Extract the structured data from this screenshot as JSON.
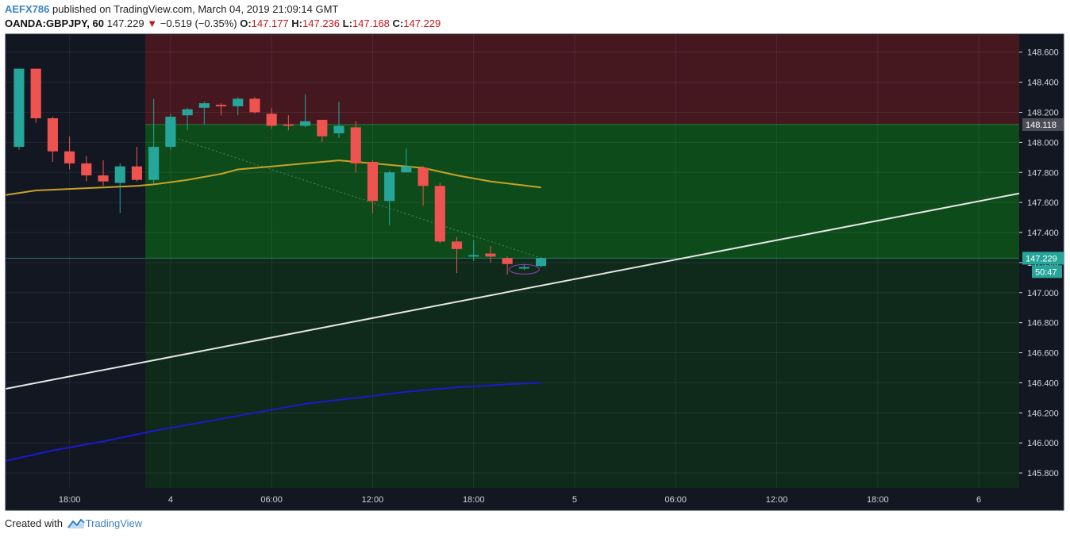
{
  "header": {
    "username": "AEFX786",
    "published_text": "published on TradingView.com, March 04, 2019 21:09:14 GMT",
    "symbol": "OANDA:GBPJPY, 60",
    "last": "147.229",
    "change": "−0.519 (−0.35%)",
    "o_label": "O:",
    "o_value": "147.177",
    "h_label": "H:",
    "h_value": "147.236",
    "l_label": "L:",
    "l_value": "147.168",
    "c_label": "C:",
    "c_value": "147.229"
  },
  "footer": {
    "created_with": "Created with",
    "brand": "TradingView"
  },
  "colors": {
    "bg": "#131722",
    "bull": "#26a69a",
    "bear": "#ef5350",
    "stop_zone": "#451820",
    "target_zone": "#0d4b1a",
    "risk_zone": "#0f2a1a",
    "ma_fast": "#c9a227",
    "ma_slow": "#1a1acc",
    "trendline": "#e6e6e6"
  },
  "chart_data": {
    "type": "candlestick",
    "symbol": "OANDA:GBPJPY",
    "interval": "60",
    "y_range": [
      145.7,
      148.72
    ],
    "y_ticks": [
      "148.600",
      "148.400",
      "148.200",
      "148.000",
      "147.800",
      "147.600",
      "147.400",
      "147.200",
      "147.000",
      "146.800",
      "146.600",
      "146.400",
      "146.200",
      "146.000",
      "145.800"
    ],
    "x_ticks": [
      {
        "label": "18:00",
        "bar": 3
      },
      {
        "label": "4",
        "bar": 9
      },
      {
        "label": "06:00",
        "bar": 15
      },
      {
        "label": "12:00",
        "bar": 21
      },
      {
        "label": "18:00",
        "bar": 27
      },
      {
        "label": "5",
        "bar": 33
      },
      {
        "label": "06:00",
        "bar": 39
      },
      {
        "label": "12:00",
        "bar": 45
      },
      {
        "label": "18:00",
        "bar": 51
      },
      {
        "label": "6",
        "bar": 57
      }
    ],
    "bars_visible_span": [
      -0.8,
      59.4
    ],
    "candles": [
      {
        "o": 147.97,
        "h": 148.49,
        "l": 147.95,
        "c": 148.49
      },
      {
        "o": 148.49,
        "h": 148.49,
        "l": 148.13,
        "c": 148.16
      },
      {
        "o": 148.16,
        "h": 148.17,
        "l": 147.87,
        "c": 147.94
      },
      {
        "o": 147.94,
        "h": 148.04,
        "l": 147.82,
        "c": 147.86
      },
      {
        "o": 147.86,
        "h": 147.91,
        "l": 147.74,
        "c": 147.78
      },
      {
        "o": 147.78,
        "h": 147.88,
        "l": 147.71,
        "c": 147.74
      },
      {
        "o": 147.73,
        "h": 147.86,
        "l": 147.53,
        "c": 147.84
      },
      {
        "o": 147.84,
        "h": 147.97,
        "l": 147.74,
        "c": 147.75
      },
      {
        "o": 147.75,
        "h": 148.29,
        "l": 147.72,
        "c": 147.97
      },
      {
        "o": 147.97,
        "h": 148.19,
        "l": 147.95,
        "c": 148.17
      },
      {
        "o": 148.18,
        "h": 148.23,
        "l": 148.08,
        "c": 148.22
      },
      {
        "o": 148.23,
        "h": 148.27,
        "l": 148.12,
        "c": 148.26
      },
      {
        "o": 148.25,
        "h": 148.26,
        "l": 148.18,
        "c": 148.24
      },
      {
        "o": 148.24,
        "h": 148.3,
        "l": 148.18,
        "c": 148.29
      },
      {
        "o": 148.29,
        "h": 148.3,
        "l": 148.19,
        "c": 148.2
      },
      {
        "o": 148.19,
        "h": 148.23,
        "l": 148.09,
        "c": 148.11
      },
      {
        "o": 148.12,
        "h": 148.18,
        "l": 148.08,
        "c": 148.11
      },
      {
        "o": 148.11,
        "h": 148.32,
        "l": 148.1,
        "c": 148.14
      },
      {
        "o": 148.15,
        "h": 148.15,
        "l": 148.0,
        "c": 148.04
      },
      {
        "o": 148.06,
        "h": 148.27,
        "l": 148.03,
        "c": 148.11
      },
      {
        "o": 148.1,
        "h": 148.14,
        "l": 147.8,
        "c": 147.86
      },
      {
        "o": 147.87,
        "h": 147.88,
        "l": 147.53,
        "c": 147.61
      },
      {
        "o": 147.61,
        "h": 147.81,
        "l": 147.45,
        "c": 147.8
      },
      {
        "o": 147.8,
        "h": 147.96,
        "l": 147.8,
        "c": 147.84
      },
      {
        "o": 147.83,
        "h": 147.84,
        "l": 147.58,
        "c": 147.71
      },
      {
        "o": 147.71,
        "h": 147.73,
        "l": 147.33,
        "c": 147.34
      },
      {
        "o": 147.34,
        "h": 147.37,
        "l": 147.13,
        "c": 147.29
      },
      {
        "o": 147.24,
        "h": 147.35,
        "l": 147.21,
        "c": 147.25
      },
      {
        "o": 147.26,
        "h": 147.31,
        "l": 147.2,
        "c": 147.24
      },
      {
        "o": 147.23,
        "h": 147.24,
        "l": 147.12,
        "c": 147.19
      },
      {
        "o": 147.16,
        "h": 147.19,
        "l": 147.15,
        "c": 147.17
      },
      {
        "o": 147.177,
        "h": 147.236,
        "l": 147.168,
        "c": 147.229
      }
    ],
    "ma_fast": [
      [
        -0.8,
        147.65
      ],
      [
        1,
        147.68
      ],
      [
        3,
        147.69
      ],
      [
        5,
        147.7
      ],
      [
        7,
        147.71
      ],
      [
        8,
        147.72
      ],
      [
        10,
        147.75
      ],
      [
        12,
        147.79
      ],
      [
        13,
        147.82
      ],
      [
        15,
        147.84
      ],
      [
        17,
        147.86
      ],
      [
        19,
        147.88
      ],
      [
        20,
        147.87
      ],
      [
        22,
        147.85
      ],
      [
        24,
        147.83
      ],
      [
        26,
        147.78
      ],
      [
        28,
        147.74
      ],
      [
        31,
        147.7
      ]
    ],
    "ma_slow": [
      [
        -0.8,
        145.88
      ],
      [
        2,
        145.95
      ],
      [
        5,
        146.01
      ],
      [
        8,
        146.08
      ],
      [
        11,
        146.14
      ],
      [
        14,
        146.2
      ],
      [
        17,
        146.26
      ],
      [
        20,
        146.3
      ],
      [
        23,
        146.34
      ],
      [
        26,
        146.37
      ],
      [
        29,
        146.39
      ],
      [
        31,
        146.4
      ]
    ],
    "trendline": [
      [
        -0.8,
        146.36
      ],
      [
        59.4,
        147.66
      ]
    ],
    "position_zones": {
      "start_bar": 7.5,
      "stop_top": 148.72,
      "entry": 148.118,
      "target": 147.229,
      "bottom": 145.7
    },
    "price_labels": [
      {
        "text": "148.118",
        "price": 148.118,
        "kind": "entry"
      },
      {
        "text": "147.229",
        "price": 147.229,
        "kind": "last"
      },
      {
        "text": "50:47",
        "price": 147.14,
        "kind": "countdown"
      }
    ]
  }
}
